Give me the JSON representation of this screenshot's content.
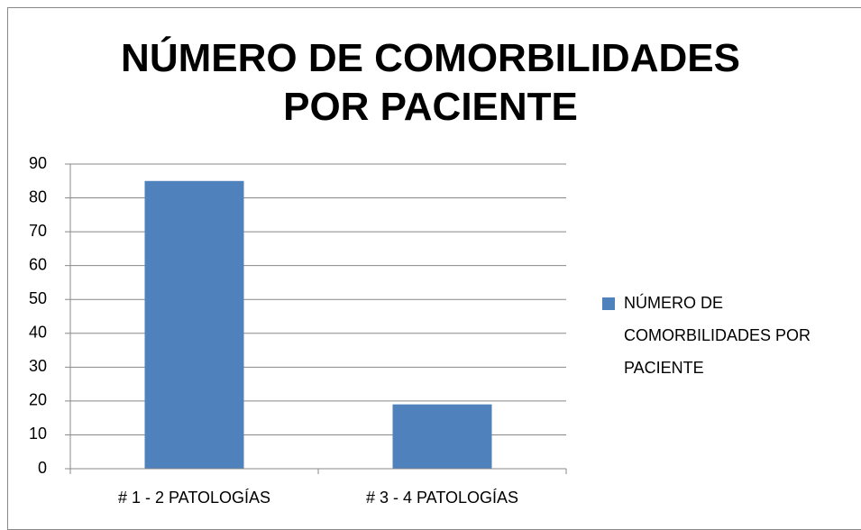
{
  "chart_data": {
    "type": "bar",
    "title": "NÚMERO DE COMORBILIDADES POR PACIENTE",
    "categories": [
      "# 1 - 2 PATOLOGÍAS",
      "# 3 - 4 PATOLOGÍAS"
    ],
    "series": [
      {
        "name": "NÚMERO DE COMORBILIDADES POR PACIENTE",
        "color": "#4f81bd",
        "values": [
          85,
          19
        ]
      }
    ],
    "ylim": [
      0,
      90
    ],
    "yticks": [
      0,
      10,
      20,
      30,
      40,
      50,
      60,
      70,
      80,
      90
    ],
    "grid": true,
    "legend": "right"
  }
}
